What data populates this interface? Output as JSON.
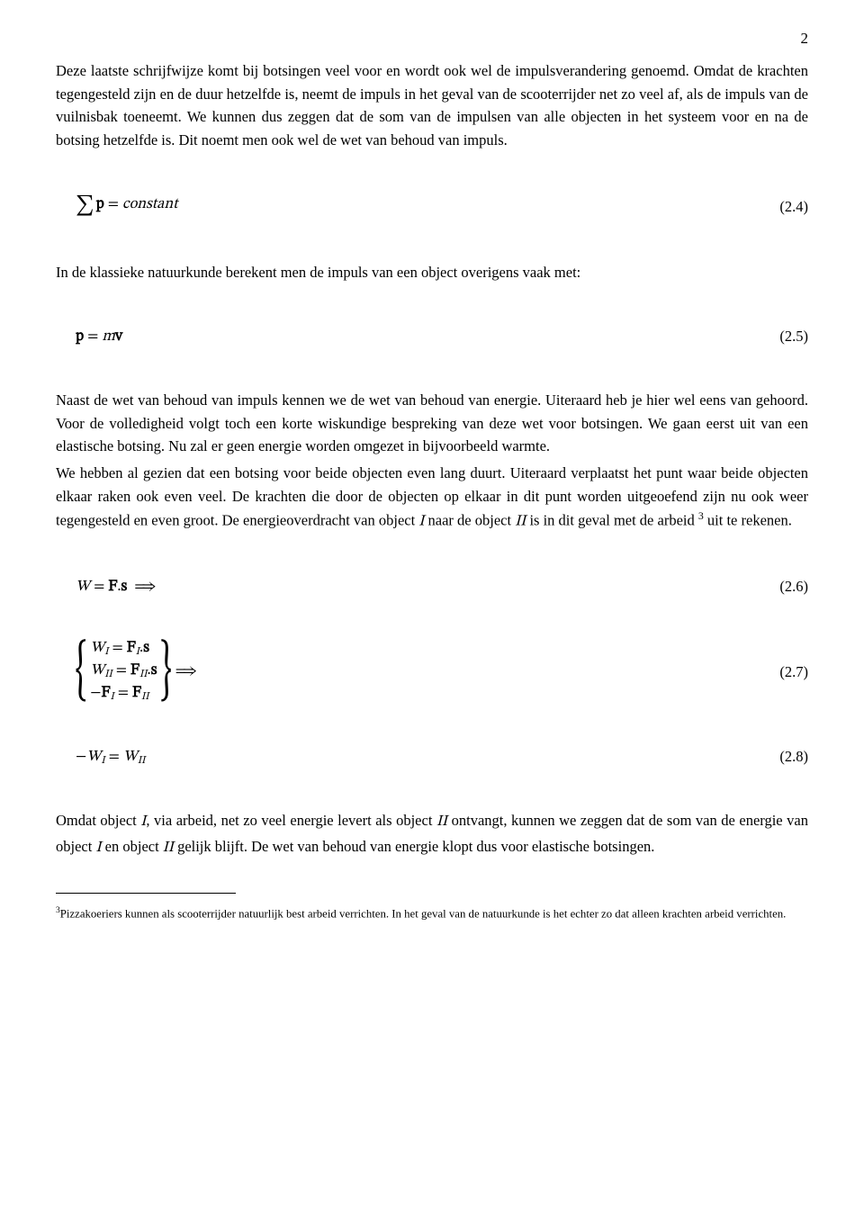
{
  "page_number": "2",
  "font": {
    "body_family": "Century Schoolbook / serif",
    "body_size_pt": 12,
    "math_family": "STIX / Latin Modern Math",
    "footnote_size_pt": 9
  },
  "colors": {
    "text": "#000000",
    "background": "#ffffff",
    "rule": "#000000"
  },
  "paragraphs": {
    "p1": "Deze laatste schrijfwijze komt bij botsingen veel voor en wordt ook wel de impulsverandering genoemd. Omdat de krachten tegengesteld zijn en de duur hetzelfde is, neemt de impuls in het geval van de scooterrijder net zo veel af, als de impuls van de vuilnisbak toeneemt. We kunnen dus zeggen dat de som van de impulsen van alle objecten in het systeem voor en na de botsing hetzelfde is. Dit noemt men ook wel de wet van behoud van impuls.",
    "p2": "In de klassieke natuurkunde berekent men de impuls van een object overigens vaak met:",
    "p3": "Naast de wet van behoud van impuls kennen we de wet van behoud van energie. Uiteraard heb je hier wel eens van gehoord. Voor de volledigheid volgt toch een korte wiskundige bespreking van deze wet voor botsingen. We gaan eerst uit van een elastische botsing. Nu zal er geen energie worden omgezet in bijvoorbeeld warmte.",
    "p4a": "We hebben al gezien dat een botsing voor beide objecten even lang duurt. Uiteraard verplaatst het punt waar beide objecten elkaar raken ook even veel. De krachten die door de objecten op elkaar in dit punt worden uitgeoefend zijn nu ook weer tegengesteld en even groot. De energieoverdracht van object ",
    "p4b": " naar de object ",
    "p4c": " is in dit geval met de arbeid ",
    "p4d": " uit te rekenen.",
    "p4_objI": "I",
    "p4_objII": "II",
    "p4_footref": "3",
    "p5a": "Omdat object ",
    "p5b": ", via arbeid, net zo veel energie levert als object ",
    "p5c": " ontvangt, kunnen we zeggen dat de som van de energie van object ",
    "p5d": " en object ",
    "p5e": " gelijk blijft. De wet van behoud van energie klopt dus voor elastische botsingen.",
    "p5_objI": "I",
    "p5_objII": "II"
  },
  "equations": {
    "e24": {
      "number": "(2.4)",
      "display": "∑ p = constant",
      "parts": {
        "sum": "∑",
        "p": "p",
        "eq": "=",
        "rhs": "constant"
      }
    },
    "e25": {
      "number": "(2.5)",
      "display": "p = m v",
      "parts": {
        "p": "p",
        "eq": "=",
        "m": "m",
        "v": "v"
      }
    },
    "e26": {
      "number": "(2.6)",
      "display": "W = F.s ⟹",
      "parts": {
        "W": "W",
        "eq": "=",
        "F": "F",
        "dot": ".",
        "s": "s",
        "impl": "=⇒"
      }
    },
    "e27": {
      "number": "(2.7)",
      "display": "{ W_I = F_I.s ; W_II = F_II.s ; −F_I = F_II } ⟹",
      "lines": {
        "l1": {
          "W": "W",
          "subI": "I",
          "eq": "=",
          "F": "F",
          "dot": ".",
          "s": "s"
        },
        "l2": {
          "W": "W",
          "subII": "II",
          "eq": "=",
          "F": "F",
          "dot": ".",
          "s": "s"
        },
        "l3": {
          "minus": "−",
          "F": "F",
          "subI": "I",
          "eq": "=",
          "F2": "F",
          "subII": "II"
        }
      },
      "impl": "=⇒"
    },
    "e28": {
      "number": "(2.8)",
      "display": "−W_I = W_II",
      "parts": {
        "minus": "−",
        "W": "W",
        "subI": "I",
        "eq": "=",
        "W2": "W",
        "subII": "II"
      }
    }
  },
  "footnote": {
    "ref": "3",
    "text": "Pizzakoeriers kunnen als scooterrijder natuurlijk best arbeid verrichten. In het geval van de natuurkunde is het echter zo dat alleen krachten arbeid verrichten."
  }
}
